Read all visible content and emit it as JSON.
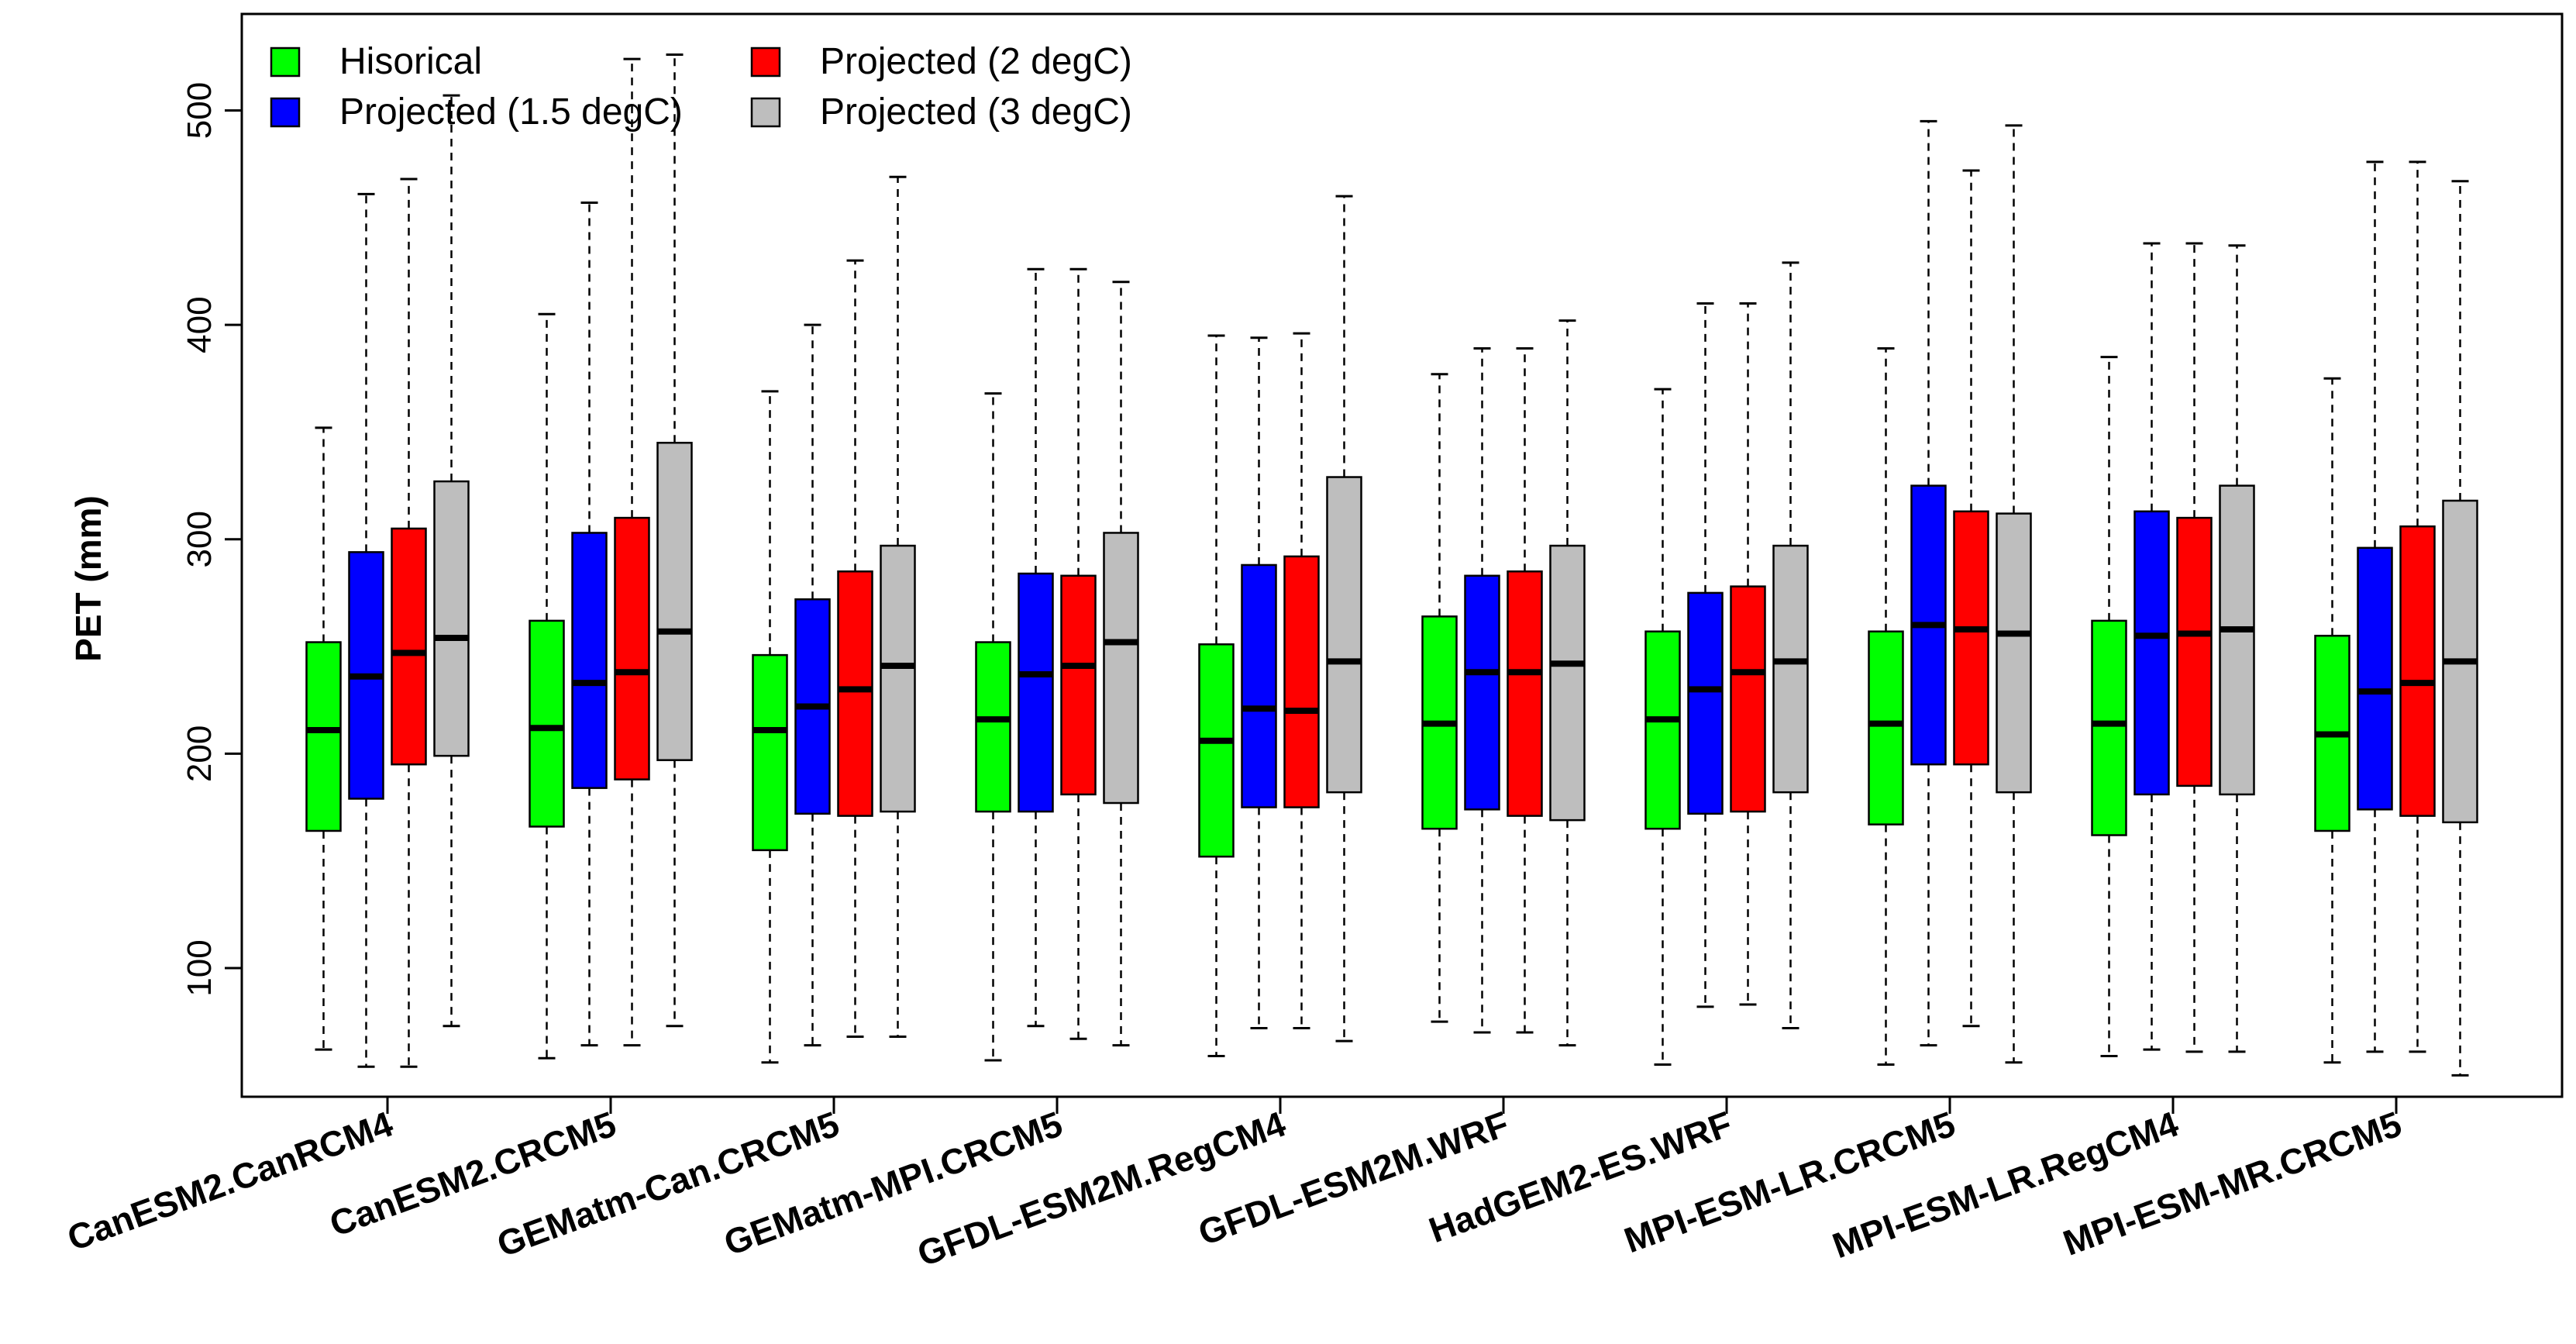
{
  "chart_data": {
    "type": "boxplot",
    "title": "",
    "xlabel": "",
    "ylabel": "PET (mm)",
    "ylim": [
      40,
      545
    ],
    "yticks": [
      100,
      200,
      300,
      400,
      500
    ],
    "legend_position": "top-left",
    "categories": [
      "CanESM2.CanRCM4",
      "CanESM2.CRCM5",
      "GEMatm-Can.CRCM5",
      "GEMatm-MPI.CRCM5",
      "GFDL-ESM2M.RegCM4",
      "GFDL-ESM2M.WRF",
      "HadGEM2-ES.WRF",
      "MPI-ESM-LR.CRCM5",
      "MPI-ESM-LR.RegCM4",
      "MPI-ESM-MR.CRCM5"
    ],
    "series": [
      {
        "name": "Hisorical",
        "color": "#00FF00",
        "boxes": [
          {
            "min": 62,
            "q1": 164,
            "median": 211,
            "q3": 252,
            "max": 352
          },
          {
            "min": 58,
            "q1": 166,
            "median": 212,
            "q3": 262,
            "max": 405
          },
          {
            "min": 56,
            "q1": 155,
            "median": 211,
            "q3": 246,
            "max": 369
          },
          {
            "min": 57,
            "q1": 173,
            "median": 216,
            "q3": 252,
            "max": 368
          },
          {
            "min": 59,
            "q1": 152,
            "median": 206,
            "q3": 251,
            "max": 395
          },
          {
            "min": 75,
            "q1": 165,
            "median": 214,
            "q3": 264,
            "max": 377
          },
          {
            "min": 55,
            "q1": 165,
            "median": 216,
            "q3": 257,
            "max": 370
          },
          {
            "min": 55,
            "q1": 167,
            "median": 214,
            "q3": 257,
            "max": 389
          },
          {
            "min": 59,
            "q1": 162,
            "median": 214,
            "q3": 262,
            "max": 385
          },
          {
            "min": 56,
            "q1": 164,
            "median": 209,
            "q3": 255,
            "max": 375
          }
        ]
      },
      {
        "name": "Projected (1.5 degC)",
        "color": "#0000FF",
        "boxes": [
          {
            "min": 54,
            "q1": 179,
            "median": 236,
            "q3": 294,
            "max": 461
          },
          {
            "min": 64,
            "q1": 184,
            "median": 233,
            "q3": 303,
            "max": 457
          },
          {
            "min": 64,
            "q1": 172,
            "median": 222,
            "q3": 272,
            "max": 400
          },
          {
            "min": 73,
            "q1": 173,
            "median": 237,
            "q3": 284,
            "max": 426
          },
          {
            "min": 72,
            "q1": 175,
            "median": 221,
            "q3": 288,
            "max": 394
          },
          {
            "min": 70,
            "q1": 174,
            "median": 238,
            "q3": 283,
            "max": 389
          },
          {
            "min": 82,
            "q1": 172,
            "median": 230,
            "q3": 275,
            "max": 410
          },
          {
            "min": 64,
            "q1": 195,
            "median": 260,
            "q3": 325,
            "max": 495
          },
          {
            "min": 62,
            "q1": 181,
            "median": 255,
            "q3": 313,
            "max": 438
          },
          {
            "min": 61,
            "q1": 174,
            "median": 229,
            "q3": 296,
            "max": 476
          }
        ]
      },
      {
        "name": "Projected (2 degC)",
        "color": "#FF0000",
        "boxes": [
          {
            "min": 54,
            "q1": 195,
            "median": 247,
            "q3": 305,
            "max": 468
          },
          {
            "min": 64,
            "q1": 188,
            "median": 238,
            "q3": 310,
            "max": 524
          },
          {
            "min": 68,
            "q1": 171,
            "median": 230,
            "q3": 285,
            "max": 430
          },
          {
            "min": 67,
            "q1": 181,
            "median": 241,
            "q3": 283,
            "max": 426
          },
          {
            "min": 72,
            "q1": 175,
            "median": 220,
            "q3": 292,
            "max": 396
          },
          {
            "min": 70,
            "q1": 171,
            "median": 238,
            "q3": 285,
            "max": 389
          },
          {
            "min": 83,
            "q1": 173,
            "median": 238,
            "q3": 278,
            "max": 410
          },
          {
            "min": 73,
            "q1": 195,
            "median": 258,
            "q3": 313,
            "max": 472
          },
          {
            "min": 61,
            "q1": 185,
            "median": 256,
            "q3": 310,
            "max": 438
          },
          {
            "min": 61,
            "q1": 171,
            "median": 233,
            "q3": 306,
            "max": 476
          }
        ]
      },
      {
        "name": "Projected (3 degC)",
        "color": "#BEBEBE",
        "boxes": [
          {
            "min": 73,
            "q1": 199,
            "median": 254,
            "q3": 327,
            "max": 507
          },
          {
            "min": 73,
            "q1": 197,
            "median": 257,
            "q3": 345,
            "max": 526
          },
          {
            "min": 68,
            "q1": 173,
            "median": 241,
            "q3": 297,
            "max": 469
          },
          {
            "min": 64,
            "q1": 177,
            "median": 252,
            "q3": 303,
            "max": 420
          },
          {
            "min": 66,
            "q1": 182,
            "median": 243,
            "q3": 329,
            "max": 460
          },
          {
            "min": 64,
            "q1": 169,
            "median": 242,
            "q3": 297,
            "max": 402
          },
          {
            "min": 72,
            "q1": 182,
            "median": 243,
            "q3": 297,
            "max": 429
          },
          {
            "min": 56,
            "q1": 182,
            "median": 256,
            "q3": 312,
            "max": 493
          },
          {
            "min": 61,
            "q1": 181,
            "median": 258,
            "q3": 325,
            "max": 437
          },
          {
            "min": 50,
            "q1": 168,
            "median": 243,
            "q3": 318,
            "max": 467
          }
        ]
      }
    ]
  }
}
